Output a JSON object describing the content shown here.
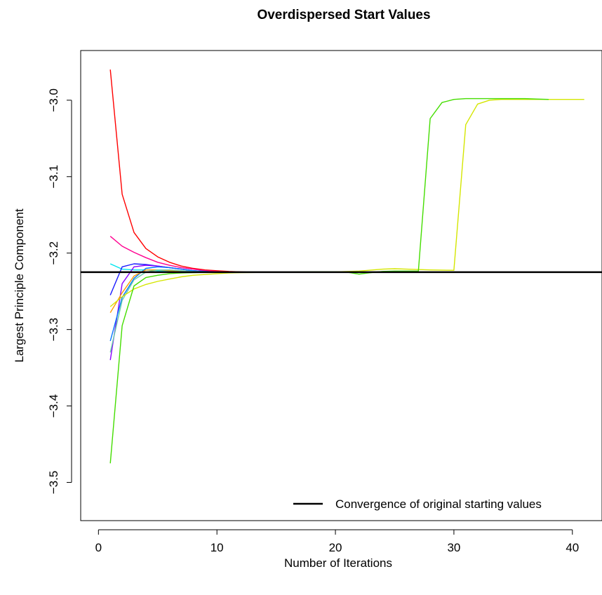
{
  "chart_data": {
    "type": "line",
    "title": "Overdispersed Start Values",
    "xlabel": "Number of Iterations",
    "ylabel": "Largest Principle Component",
    "xlim": [
      -1.5,
      42.5
    ],
    "ylim": [
      -3.55,
      -2.935
    ],
    "xticks": [
      0,
      10,
      20,
      30,
      40
    ],
    "yticks": [
      -3.5,
      -3.4,
      -3.3,
      -3.2,
      -3.1,
      -3.0
    ],
    "ytick_labels": [
      "−3.5",
      "−3.4",
      "−3.3",
      "−3.2",
      "−3.1",
      "−3.0"
    ],
    "grid": false,
    "legend_position": "bottom-right",
    "reference_line": {
      "y": -3.225,
      "label": "Convergence of original starting values",
      "color": "#000000"
    },
    "series": [
      {
        "color": "#ff0000",
        "x": [
          1,
          2,
          3,
          4,
          5,
          6,
          7,
          8,
          9,
          10,
          11,
          12,
          13
        ],
        "y": [
          -2.96,
          -3.123,
          -3.173,
          -3.194,
          -3.205,
          -3.212,
          -3.217,
          -3.22,
          -3.222,
          -3.223,
          -3.224,
          -3.2245,
          -3.225
        ]
      },
      {
        "color": "#ff0090",
        "x": [
          1,
          2,
          3,
          4,
          5,
          6,
          7,
          8,
          9,
          10,
          11,
          12
        ],
        "y": [
          -3.178,
          -3.191,
          -3.199,
          -3.206,
          -3.212,
          -3.216,
          -3.219,
          -3.221,
          -3.223,
          -3.224,
          -3.2245,
          -3.225
        ]
      },
      {
        "color": "#00e5ee",
        "x": [
          1,
          2,
          3,
          4,
          5,
          6,
          7,
          8,
          9,
          10
        ],
        "y": [
          -3.214,
          -3.221,
          -3.222,
          -3.222,
          -3.223,
          -3.2235,
          -3.224,
          -3.2245,
          -3.2248,
          -3.225
        ]
      },
      {
        "color": "#1a1aff",
        "x": [
          1,
          2,
          3,
          4,
          5,
          6,
          7,
          8,
          9,
          10
        ],
        "y": [
          -3.255,
          -3.218,
          -3.214,
          -3.215,
          -3.217,
          -3.219,
          -3.221,
          -3.223,
          -3.224,
          -3.225
        ]
      },
      {
        "color": "#8a00ff",
        "x": [
          1,
          2,
          3,
          4,
          5,
          6,
          7,
          8,
          9,
          10
        ],
        "y": [
          -3.34,
          -3.24,
          -3.218,
          -3.216,
          -3.217,
          -3.219,
          -3.221,
          -3.223,
          -3.224,
          -3.225
        ]
      },
      {
        "color": "#0077ff",
        "x": [
          1,
          2,
          3,
          4,
          5,
          6,
          7,
          8,
          9,
          10
        ],
        "y": [
          -3.315,
          -3.258,
          -3.233,
          -3.22,
          -3.218,
          -3.219,
          -3.221,
          -3.223,
          -3.224,
          -3.225
        ]
      },
      {
        "color": "#ff9900",
        "x": [
          1,
          2,
          3,
          4,
          5,
          6,
          7,
          8,
          9,
          10
        ],
        "y": [
          -3.278,
          -3.252,
          -3.23,
          -3.222,
          -3.222,
          -3.223,
          -3.224,
          -3.2245,
          -3.2248,
          -3.225
        ]
      },
      {
        "color": "#66cdaa",
        "x": [
          1,
          2,
          3,
          4,
          5,
          6,
          7,
          8,
          9,
          10
        ],
        "y": [
          -3.33,
          -3.262,
          -3.235,
          -3.225,
          -3.222,
          -3.222,
          -3.223,
          -3.224,
          -3.2245,
          -3.225
        ]
      },
      {
        "color": "#d4e600",
        "x": [
          1,
          2,
          3,
          4,
          5,
          6,
          7,
          8,
          9,
          10,
          11,
          12,
          14,
          16,
          18,
          20,
          22,
          24,
          25,
          26,
          28,
          30,
          31,
          32,
          33,
          34,
          36,
          38,
          41
        ],
        "y": [
          -3.27,
          -3.257,
          -3.247,
          -3.241,
          -3.237,
          -3.234,
          -3.231,
          -3.229,
          -3.228,
          -3.227,
          -3.226,
          -3.2255,
          -3.2252,
          -3.225,
          -3.2248,
          -3.2245,
          -3.2235,
          -3.221,
          -3.2205,
          -3.221,
          -3.222,
          -3.2225,
          -3.032,
          -3.005,
          -3.0,
          -2.999,
          -2.999,
          -2.999,
          -2.999
        ]
      },
      {
        "color": "#44dd00",
        "x": [
          1,
          2,
          3,
          4,
          5,
          6,
          7,
          8,
          10,
          12,
          14,
          16,
          18,
          20,
          21,
          22,
          23,
          24,
          25,
          26,
          27,
          28,
          29,
          30,
          31,
          32,
          34,
          36,
          38
        ],
        "y": [
          -3.475,
          -3.295,
          -3.243,
          -3.232,
          -3.229,
          -3.227,
          -3.226,
          -3.2255,
          -3.225,
          -3.225,
          -3.225,
          -3.2248,
          -3.2245,
          -3.2245,
          -3.225,
          -3.2275,
          -3.2255,
          -3.224,
          -3.2235,
          -3.2235,
          -3.2235,
          -3.024,
          -3.003,
          -2.999,
          -2.998,
          -2.998,
          -2.998,
          -2.998,
          -2.999
        ]
      }
    ]
  }
}
